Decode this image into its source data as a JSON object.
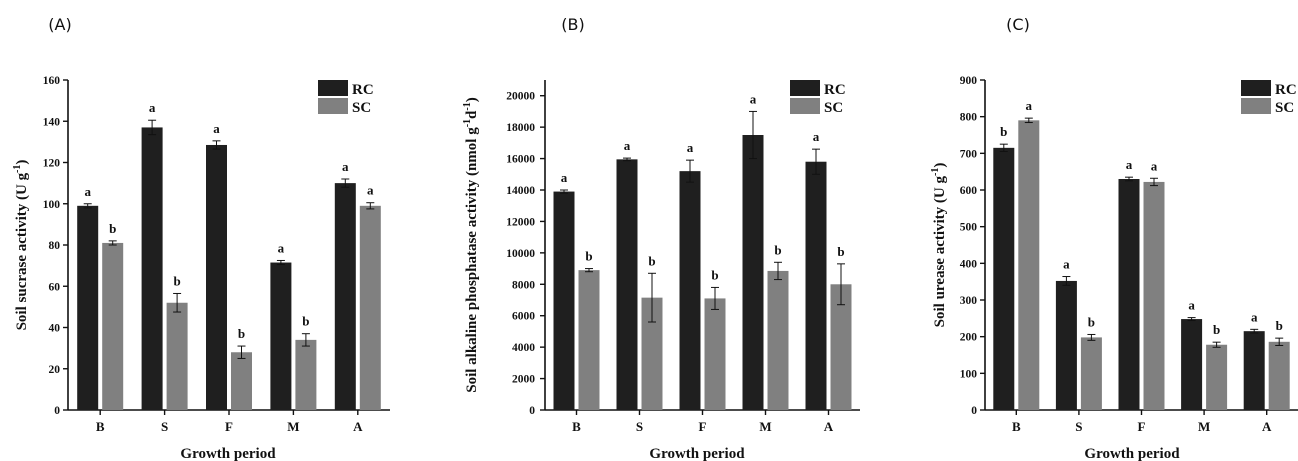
{
  "colors": {
    "RC": "#1f1f1f",
    "SC": "#808080",
    "axis": "#111111"
  },
  "chart_data": [
    {
      "type": "bar",
      "panel_label": "(A)",
      "xlabel": "Growth period",
      "ylabel_main": "Soil sucrase activity (U g",
      "ylabel_sup": "-1",
      "ylabel_end": ")",
      "categories": [
        "B",
        "S",
        "F",
        "M",
        "A"
      ],
      "ylim": [
        0,
        160
      ],
      "yticks": [
        0,
        20,
        40,
        60,
        80,
        100,
        120,
        140,
        160
      ],
      "legend_position": "top-right",
      "series": [
        {
          "name": "RC",
          "values": [
            99,
            137,
            128.5,
            71.5,
            110
          ],
          "errors": [
            1,
            3.5,
            2,
            1,
            2
          ],
          "labels": [
            "a",
            "a",
            "a",
            "a",
            "a"
          ]
        },
        {
          "name": "SC",
          "values": [
            81,
            52,
            28,
            34,
            99
          ],
          "errors": [
            1,
            4.5,
            3,
            3,
            1.5
          ],
          "labels": [
            "b",
            "b",
            "b",
            "b",
            "a"
          ]
        }
      ]
    },
    {
      "type": "bar",
      "panel_label": "(B)",
      "xlabel": "Growth period",
      "ylabel_main": "Soil alkaline phosphatase activity (nmol g",
      "ylabel_sup": "-1",
      "ylabel_mid": "d",
      "ylabel_sup2": "-1",
      "ylabel_end": ")",
      "categories": [
        "B",
        "S",
        "F",
        "M",
        "A"
      ],
      "ylim": [
        0,
        21000
      ],
      "yticks": [
        0,
        2000,
        4000,
        6000,
        8000,
        10000,
        12000,
        14000,
        16000,
        18000,
        20000
      ],
      "legend_position": "top-right",
      "series": [
        {
          "name": "RC",
          "values": [
            13900,
            15950,
            15200,
            17500,
            15800
          ],
          "errors": [
            100,
            80,
            700,
            1500,
            800
          ],
          "labels": [
            "a",
            "a",
            "a",
            "a",
            "a"
          ]
        },
        {
          "name": "SC",
          "values": [
            8900,
            7150,
            7100,
            8850,
            8000
          ],
          "errors": [
            100,
            1550,
            700,
            550,
            1300
          ],
          "labels": [
            "b",
            "b",
            "b",
            "b",
            "b"
          ]
        }
      ]
    },
    {
      "type": "bar",
      "panel_label": "(C)",
      "xlabel": "Growth period",
      "ylabel_main": "Soil urease activity (U g",
      "ylabel_sup": "-1",
      "ylabel_end": ")",
      "categories": [
        "B",
        "S",
        "F",
        "M",
        "A"
      ],
      "ylim": [
        0,
        900
      ],
      "yticks": [
        0,
        100,
        200,
        300,
        400,
        500,
        600,
        700,
        800,
        900
      ],
      "legend_position": "top-right",
      "series": [
        {
          "name": "RC",
          "values": [
            715,
            352,
            630,
            248,
            215
          ],
          "errors": [
            10,
            12,
            5,
            4,
            5
          ],
          "labels": [
            "b",
            "a",
            "a",
            "a",
            "a"
          ]
        },
        {
          "name": "SC",
          "values": [
            790,
            198,
            622,
            178,
            186
          ],
          "errors": [
            6,
            8,
            10,
            7,
            10
          ],
          "labels": [
            "a",
            "b",
            "a",
            "b",
            "b"
          ]
        }
      ]
    }
  ]
}
